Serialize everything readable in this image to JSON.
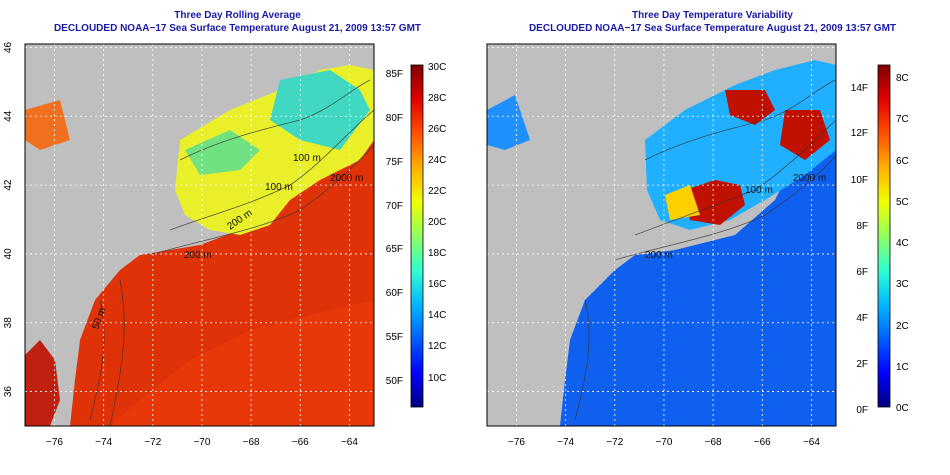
{
  "left": {
    "title": "Three Day Rolling Average",
    "subtitle": "DECLOUDED NOAA−17 Sea Surface Temperature August 21, 2009 13:57 GMT",
    "colorbar": {
      "f_labels": [
        "50F",
        "55F",
        "60F",
        "65F",
        "70F",
        "75F",
        "80F",
        "85F"
      ],
      "c_labels": [
        "10C",
        "12C",
        "14C",
        "16C",
        "18C",
        "20C",
        "22C",
        "24C",
        "26C",
        "28C",
        "30C"
      ],
      "colors": [
        "#000080",
        "#0000ff",
        "#0060ff",
        "#00b8ff",
        "#30ffd0",
        "#90ff60",
        "#f0ff00",
        "#ffb000",
        "#ff5000",
        "#e00000",
        "#800000"
      ]
    },
    "contours": [
      "100 m",
      "100 m",
      "2000 m",
      "200 m",
      "200 m",
      "50 m"
    ]
  },
  "right": {
    "title": "Three Day Temperature Variability",
    "subtitle": "DECLOUDED NOAA−17 Sea Surface Temperature August 21, 2009 13:57 GMT",
    "colorbar": {
      "f_labels": [
        "0F",
        "2F",
        "4F",
        "6F",
        "8F",
        "10F",
        "12F",
        "14F"
      ],
      "c_labels": [
        "0C",
        "1C",
        "2C",
        "3C",
        "4C",
        "5C",
        "6C",
        "7C",
        "8C"
      ],
      "colors": [
        "#000080",
        "#0000ff",
        "#0060ff",
        "#00b8ff",
        "#30ffd0",
        "#90ff60",
        "#f0ff00",
        "#ffb000",
        "#ff5000",
        "#e00000",
        "#800000"
      ]
    },
    "contours": [
      "100 m",
      "2000 m",
      "200 m"
    ]
  },
  "axes": {
    "lon_labels": [
      "−76",
      "−74",
      "−72",
      "−70",
      "−68",
      "−66",
      "−64"
    ],
    "lat_labels": [
      "36",
      "38",
      "40",
      "42",
      "44",
      "46"
    ],
    "lon_values": [
      -76,
      -74,
      -72,
      -70,
      -68,
      -66,
      -64
    ],
    "lat_values": [
      36,
      38,
      40,
      42,
      44,
      46
    ],
    "lon_range": [
      -77.2,
      -63.0
    ],
    "lat_range": [
      35.0,
      46.1
    ]
  },
  "colors": {
    "land": "#bfbfbf",
    "title": "#1a1aa6",
    "sst_warm": "#f03a00",
    "sst_shelf": "#eaff20",
    "var_low": "#1070ff",
    "var_high": "#c00000"
  }
}
